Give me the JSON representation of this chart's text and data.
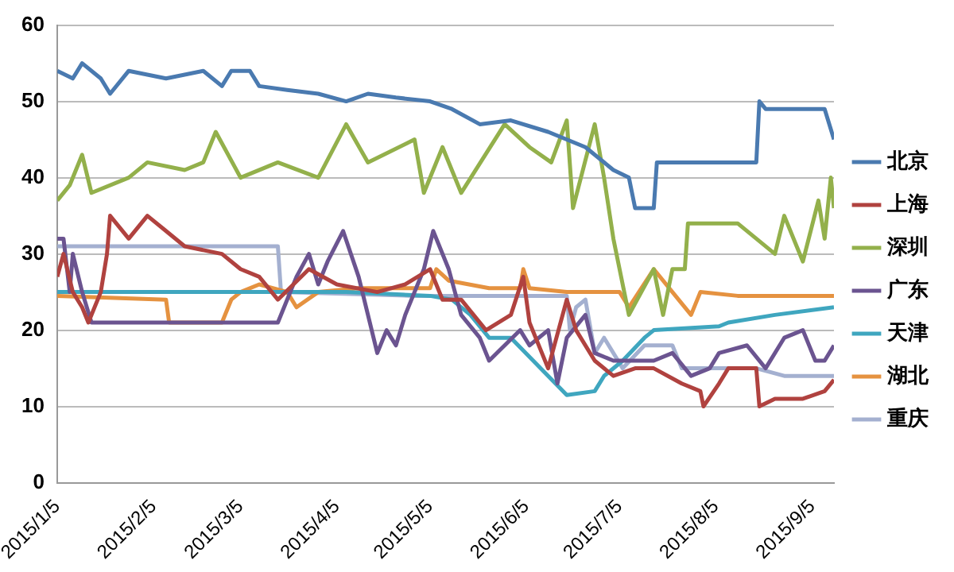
{
  "chart_data": {
    "type": "line",
    "legend": "right",
    "grid": "y",
    "marker": "none",
    "line_style": "solid",
    "xlim": [
      "2015-01-05",
      "2015-09-12"
    ],
    "xticks": [
      {
        "value": "2015-01-05",
        "label": "2015/1/5"
      },
      {
        "value": "2015-02-05",
        "label": "2015/2/5"
      },
      {
        "value": "2015-03-05",
        "label": "2015/3/5"
      },
      {
        "value": "2015-04-05",
        "label": "2015/4/5"
      },
      {
        "value": "2015-05-05",
        "label": "2015/5/5"
      },
      {
        "value": "2015-06-05",
        "label": "2015/6/5"
      },
      {
        "value": "2015-07-05",
        "label": "2015/7/5"
      },
      {
        "value": "2015-08-05",
        "label": "2015/8/5"
      },
      {
        "value": "2015-09-05",
        "label": "2015/9/5"
      }
    ],
    "ylim": [
      0,
      60
    ],
    "yticks": [
      0,
      10,
      20,
      30,
      40,
      50,
      60
    ],
    "series": [
      {
        "name": "北京",
        "color": "#4a7ab0",
        "x": [
          "2015-01-05",
          "2015-01-10",
          "2015-01-13",
          "2015-01-19",
          "2015-01-22",
          "2015-01-28",
          "2015-02-09",
          "2015-02-21",
          "2015-02-27",
          "2015-03-02",
          "2015-03-08",
          "2015-03-11",
          "2015-03-20",
          "2015-03-30",
          "2015-04-08",
          "2015-04-15",
          "2015-04-24",
          "2015-05-05",
          "2015-05-12",
          "2015-05-21",
          "2015-05-31",
          "2015-06-12",
          "2015-06-24",
          "2015-07-03",
          "2015-07-08",
          "2015-07-10",
          "2015-07-16",
          "2015-07-17",
          "2015-08-18",
          "2015-08-19",
          "2015-08-21",
          "2015-08-27",
          "2015-09-09",
          "2015-09-12"
        ],
        "values": [
          54,
          53,
          55,
          53,
          51,
          54,
          53,
          54,
          52,
          54,
          54,
          52,
          51.5,
          51,
          50,
          51,
          50.5,
          50,
          49,
          47,
          47.5,
          46,
          44,
          41,
          40,
          36,
          36,
          42,
          42,
          50,
          49,
          49,
          49,
          45
        ]
      },
      {
        "name": "上海",
        "color": "#b0423f",
        "x": [
          "2015-01-05",
          "2015-01-07",
          "2015-01-10",
          "2015-01-13",
          "2015-01-15",
          "2015-01-19",
          "2015-01-21",
          "2015-01-22",
          "2015-01-28",
          "2015-02-03",
          "2015-02-09",
          "2015-02-15",
          "2015-02-27",
          "2015-03-05",
          "2015-03-11",
          "2015-03-17",
          "2015-03-27",
          "2015-04-05",
          "2015-04-18",
          "2015-04-27",
          "2015-05-05",
          "2015-05-09",
          "2015-05-15",
          "2015-05-23",
          "2015-05-31",
          "2015-06-04",
          "2015-06-06",
          "2015-06-12",
          "2015-06-18",
          "2015-06-21",
          "2015-06-27",
          "2015-07-03",
          "2015-07-10",
          "2015-07-16",
          "2015-07-25",
          "2015-07-31",
          "2015-08-01",
          "2015-08-06",
          "2015-08-09",
          "2015-08-18",
          "2015-08-19",
          "2015-08-24",
          "2015-09-02",
          "2015-09-09",
          "2015-09-12"
        ],
        "values": [
          27,
          30,
          25,
          23,
          21,
          25,
          30,
          35,
          32,
          35,
          33,
          31,
          30,
          28,
          27,
          24,
          28,
          26,
          25,
          26,
          28,
          24,
          24,
          20,
          22,
          27,
          21,
          15,
          24,
          20,
          16,
          14,
          15,
          15,
          13,
          12,
          10,
          13,
          15,
          15,
          10,
          11,
          11,
          12,
          13.5
        ]
      },
      {
        "name": "深圳",
        "color": "#93b04b",
        "x": [
          "2015-01-05",
          "2015-01-09",
          "2015-01-13",
          "2015-01-16",
          "2015-01-28",
          "2015-02-03",
          "2015-02-15",
          "2015-02-21",
          "2015-02-25",
          "2015-03-05",
          "2015-03-17",
          "2015-03-30",
          "2015-04-08",
          "2015-04-15",
          "2015-04-30",
          "2015-05-03",
          "2015-05-09",
          "2015-05-15",
          "2015-05-29",
          "2015-06-06",
          "2015-06-13",
          "2015-06-18",
          "2015-06-20",
          "2015-06-27",
          "2015-06-30",
          "2015-07-03",
          "2015-07-08",
          "2015-07-16",
          "2015-07-19",
          "2015-07-22",
          "2015-07-26",
          "2015-07-27",
          "2015-08-12",
          "2015-08-24",
          "2015-08-27",
          "2015-09-02",
          "2015-09-07",
          "2015-09-09",
          "2015-09-11",
          "2015-09-12"
        ],
        "values": [
          37,
          39,
          43,
          38,
          40,
          42,
          41,
          42,
          46,
          40,
          42,
          40,
          47,
          42,
          45,
          38,
          44,
          38,
          47,
          44,
          42,
          47.5,
          36,
          47,
          40,
          32,
          22,
          28,
          22,
          28,
          28,
          34,
          34,
          30,
          35,
          29,
          37,
          32,
          40,
          36
        ]
      },
      {
        "name": "广东",
        "color": "#6b5490",
        "x": [
          "2015-01-05",
          "2015-01-07",
          "2015-01-09",
          "2015-01-10",
          "2015-01-13",
          "2015-01-16",
          "2015-03-17",
          "2015-03-23",
          "2015-03-27",
          "2015-03-30",
          "2015-04-02",
          "2015-04-07",
          "2015-04-12",
          "2015-04-15",
          "2015-04-18",
          "2015-04-21",
          "2015-04-24",
          "2015-04-27",
          "2015-05-03",
          "2015-05-06",
          "2015-05-11",
          "2015-05-15",
          "2015-05-21",
          "2015-05-24",
          "2015-06-03",
          "2015-06-06",
          "2015-06-12",
          "2015-06-15",
          "2015-06-18",
          "2015-06-24",
          "2015-06-27",
          "2015-07-03",
          "2015-07-10",
          "2015-07-16",
          "2015-07-22",
          "2015-07-28",
          "2015-08-03",
          "2015-08-06",
          "2015-08-15",
          "2015-08-21",
          "2015-08-27",
          "2015-09-02",
          "2015-09-06",
          "2015-09-09",
          "2015-09-12"
        ],
        "values": [
          32,
          32,
          25,
          30,
          25,
          21,
          21,
          27,
          30,
          26,
          29,
          33,
          27,
          22,
          17,
          20,
          18,
          22,
          28,
          33,
          28,
          22,
          19,
          16,
          20,
          18,
          20,
          13,
          19,
          22,
          17,
          16,
          16,
          16,
          17,
          14,
          15,
          17,
          18,
          15,
          19,
          20,
          16,
          16,
          18
        ]
      },
      {
        "name": "天津",
        "color": "#3fa6bf",
        "x": [
          "2015-01-05",
          "2015-04-08",
          "2015-05-05",
          "2015-05-12",
          "2015-05-18",
          "2015-05-24",
          "2015-05-31",
          "2015-06-12",
          "2015-06-18",
          "2015-06-27",
          "2015-06-30",
          "2015-07-06",
          "2015-07-13",
          "2015-07-16",
          "2015-08-06",
          "2015-08-09",
          "2015-08-24",
          "2015-09-12"
        ],
        "values": [
          25,
          25,
          24.5,
          24,
          22,
          19,
          19,
          14,
          11.5,
          12,
          14,
          16,
          19,
          20,
          20.5,
          21,
          22,
          23
        ]
      },
      {
        "name": "湖北",
        "color": "#e59240",
        "x": [
          "2015-01-05",
          "2015-02-09",
          "2015-02-10",
          "2015-02-27",
          "2015-03-02",
          "2015-03-05",
          "2015-03-11",
          "2015-03-20",
          "2015-03-23",
          "2015-03-30",
          "2015-04-12",
          "2015-05-05",
          "2015-05-07",
          "2015-05-11",
          "2015-05-24",
          "2015-06-03",
          "2015-06-04",
          "2015-06-06",
          "2015-06-18",
          "2015-07-05",
          "2015-07-08",
          "2015-07-16",
          "2015-07-22",
          "2015-07-28",
          "2015-07-31",
          "2015-08-12",
          "2015-09-12"
        ],
        "values": [
          24.5,
          24,
          21,
          21,
          24,
          25,
          26,
          25,
          23,
          25,
          25.5,
          25.5,
          28,
          26.5,
          25.5,
          25.5,
          28,
          25.5,
          25,
          25,
          23,
          28,
          25,
          22,
          25,
          24.5,
          24.5
        ]
      },
      {
        "name": "重庆",
        "color": "#a4b0d0",
        "x": [
          "2015-01-05",
          "2015-03-17",
          "2015-03-18",
          "2015-04-30",
          "2015-06-18",
          "2015-06-19",
          "2015-06-21",
          "2015-06-24",
          "2015-06-27",
          "2015-06-30",
          "2015-07-06",
          "2015-07-13",
          "2015-07-22",
          "2015-07-25",
          "2015-08-18",
          "2015-08-27",
          "2015-09-12"
        ],
        "values": [
          31,
          31,
          25,
          24.5,
          24.5,
          20,
          23,
          24,
          17,
          19,
          15,
          18,
          18,
          15,
          15,
          14,
          14
        ]
      }
    ]
  }
}
